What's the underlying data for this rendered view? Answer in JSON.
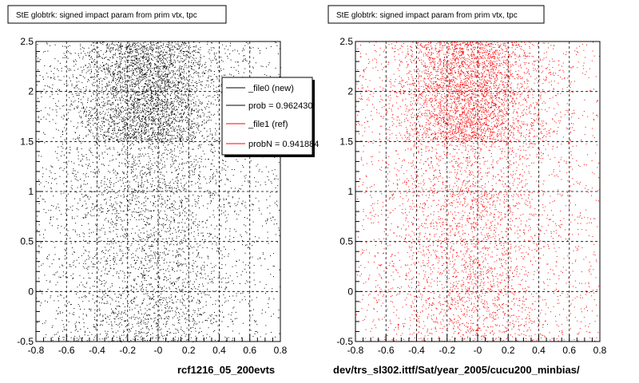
{
  "chart_data": [
    {
      "type": "scatter",
      "title": "StE globtrk: signed impact param from prim vtx, tpc",
      "xlim": [
        -0.8,
        0.8
      ],
      "ylim": [
        -0.5,
        2.5
      ],
      "x_ticks": [
        -0.8,
        -0.6,
        -0.4,
        -0.2,
        0,
        0.2,
        0.4,
        0.6,
        0.8
      ],
      "y_ticks": [
        -0.5,
        0,
        0.5,
        1,
        1.5,
        2,
        2.5
      ],
      "x_tick_labels": [
        "-0.8",
        "-0.6",
        "-0.4",
        "-0.2",
        "-0",
        "0.2",
        "0.4",
        "0.6",
        "0.8"
      ],
      "y_tick_labels": [
        "-0.5",
        "0",
        "0.5",
        "1",
        "1.5",
        "2",
        "2.5"
      ],
      "grid": true,
      "marker_color": "#000000",
      "density": "dense points over the full range, densest band for y between about 1.5 and 2.5 near x = -0.1",
      "caption": "rcf1216_05_200evts",
      "legend": {
        "placement": "top-right",
        "entries": [
          {
            "label": "_file0 (new)",
            "color": "#000000"
          },
          {
            "label": "prob = 0.962430",
            "color": "#000000"
          },
          {
            "label": "_file1 (ref)",
            "color": "#ff0000"
          },
          {
            "label": "probN = 0.941884",
            "color": "#ff0000"
          }
        ]
      }
    },
    {
      "type": "scatter",
      "title": "StE globtrk: signed impact param from prim vtx, tpc",
      "xlim": [
        -0.8,
        0.8
      ],
      "ylim": [
        -0.5,
        2.5
      ],
      "x_ticks": [
        -0.8,
        -0.6,
        -0.4,
        -0.2,
        0,
        0.2,
        0.4,
        0.6,
        0.8
      ],
      "y_ticks": [
        -0.5,
        0,
        0.5,
        1,
        1.5,
        2,
        2.5
      ],
      "x_tick_labels": [
        "-0.8",
        "-0.6",
        "-0.4",
        "-0.2",
        "-0",
        "0.2",
        "0.4",
        "0.6",
        "0.8"
      ],
      "y_tick_labels": [
        "-0.5",
        "0",
        "0.5",
        "1",
        "1.5",
        "2",
        "2.5"
      ],
      "grid": true,
      "marker_color": "#ff0000",
      "density": "dense points over the full range, densest band for y between about 1.5 and 2.5 near x = -0.1",
      "caption": "dev/trs_sl302.ittf/Sat/year_2005/cucu200_minbias/"
    }
  ]
}
